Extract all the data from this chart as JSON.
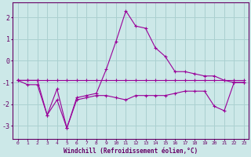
{
  "xlabel": "Windchill (Refroidissement éolien,°C)",
  "background_color": "#cce8e8",
  "grid_color": "#aad0d0",
  "line_color": "#990099",
  "x": [
    0,
    1,
    2,
    3,
    4,
    5,
    6,
    7,
    8,
    9,
    10,
    11,
    12,
    13,
    14,
    15,
    16,
    17,
    18,
    19,
    20,
    21,
    22,
    23
  ],
  "line1": [
    -0.9,
    -0.9,
    -0.9,
    -0.9,
    -0.9,
    -0.9,
    -0.9,
    -0.9,
    -0.9,
    -0.9,
    -0.9,
    -0.9,
    -0.9,
    -0.9,
    -0.9,
    -0.9,
    -0.9,
    -0.9,
    -0.9,
    -0.9,
    -0.9,
    -0.9,
    -0.9,
    -0.9
  ],
  "line2": [
    -0.9,
    -0.9,
    -0.9,
    -2.5,
    -1.3,
    -3.1,
    -1.7,
    -1.6,
    -1.5,
    -0.4,
    0.9,
    2.3,
    1.6,
    1.5,
    0.6,
    0.2,
    -0.5,
    -0.5,
    -0.6,
    -0.7,
    -0.7,
    -0.9,
    -1.0,
    -1.0
  ],
  "line3": [
    -0.9,
    -1.1,
    -1.1,
    -2.5,
    -1.8,
    -3.1,
    -1.8,
    -1.7,
    -1.6,
    -1.6,
    -1.7,
    -1.8,
    -1.6,
    -1.6,
    -1.6,
    -1.6,
    -1.5,
    -1.4,
    -1.4,
    -1.4,
    -2.1,
    -2.3,
    -1.0,
    -1.0
  ],
  "ylim": [
    -3.6,
    2.7
  ],
  "yticks": [
    -3,
    -2,
    -1,
    0,
    1,
    2
  ],
  "xticks": [
    0,
    1,
    2,
    3,
    4,
    5,
    6,
    7,
    8,
    9,
    10,
    11,
    12,
    13,
    14,
    15,
    16,
    17,
    18,
    19,
    20,
    21,
    22,
    23
  ]
}
